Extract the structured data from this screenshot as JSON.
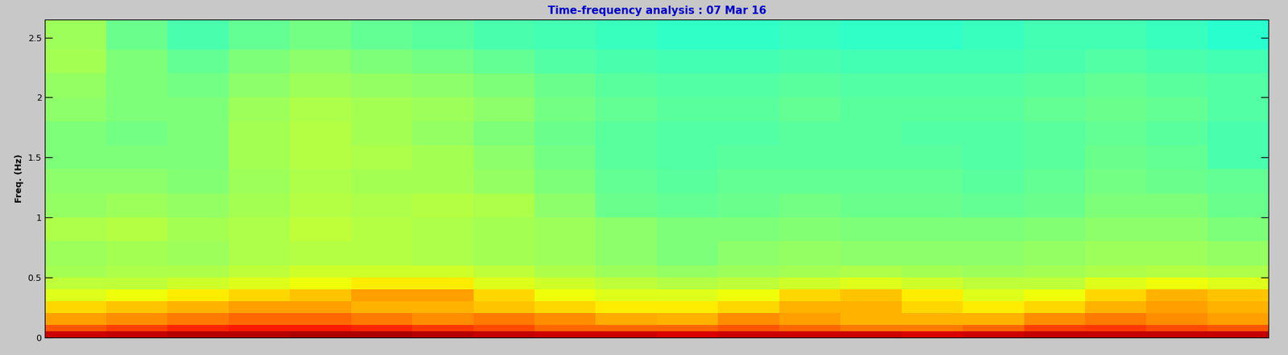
{
  "chart_data": {
    "type": "heatmap",
    "title": "Time-frequency analysis : 07 Mar 16",
    "y_label": "Freq. (Hz)",
    "tick_labels": "y",
    "xlim": [
      0,
      20
    ],
    "ylim": [
      0,
      2.65
    ],
    "yticks": [
      0,
      0.5,
      1,
      1.5,
      2,
      2.5
    ],
    "y_edges": [
      0,
      0.05,
      0.1,
      0.2,
      0.3,
      0.4,
      0.5,
      0.6,
      0.8,
      1.0,
      1.2,
      1.4,
      1.6,
      1.8,
      2.0,
      2.2,
      2.4,
      2.65
    ],
    "clim": [
      0,
      1
    ],
    "cells": [
      [
        0.93,
        0.94,
        0.95,
        0.95,
        0.96,
        0.96,
        0.95,
        0.94,
        0.93,
        0.93,
        0.92,
        0.93,
        0.93,
        0.93,
        0.92,
        0.93,
        0.94,
        0.94,
        0.94,
        0.94
      ],
      [
        0.82,
        0.84,
        0.87,
        0.88,
        0.88,
        0.87,
        0.85,
        0.83,
        0.8,
        0.8,
        0.8,
        0.82,
        0.8,
        0.78,
        0.78,
        0.8,
        0.84,
        0.85,
        0.83,
        0.82
      ],
      [
        0.74,
        0.76,
        0.78,
        0.8,
        0.8,
        0.78,
        0.76,
        0.78,
        0.76,
        0.73,
        0.72,
        0.76,
        0.74,
        0.72,
        0.72,
        0.72,
        0.76,
        0.78,
        0.76,
        0.74
      ],
      [
        0.68,
        0.7,
        0.72,
        0.74,
        0.74,
        0.72,
        0.72,
        0.7,
        0.68,
        0.66,
        0.66,
        0.68,
        0.72,
        0.72,
        0.68,
        0.66,
        0.68,
        0.72,
        0.74,
        0.72
      ],
      [
        0.62,
        0.64,
        0.66,
        0.68,
        0.7,
        0.74,
        0.74,
        0.68,
        0.64,
        0.62,
        0.62,
        0.64,
        0.68,
        0.7,
        0.66,
        0.62,
        0.64,
        0.68,
        0.72,
        0.7
      ],
      [
        0.58,
        0.58,
        0.6,
        0.62,
        0.64,
        0.66,
        0.66,
        0.62,
        0.6,
        0.58,
        0.57,
        0.58,
        0.6,
        0.62,
        0.6,
        0.58,
        0.58,
        0.62,
        0.64,
        0.62
      ],
      [
        0.55,
        0.56,
        0.56,
        0.58,
        0.6,
        0.6,
        0.6,
        0.58,
        0.56,
        0.54,
        0.53,
        0.54,
        0.55,
        0.56,
        0.55,
        0.54,
        0.55,
        0.56,
        0.57,
        0.56
      ],
      [
        0.54,
        0.55,
        0.54,
        0.56,
        0.57,
        0.57,
        0.56,
        0.55,
        0.54,
        0.52,
        0.5,
        0.52,
        0.53,
        0.52,
        0.52,
        0.52,
        0.53,
        0.54,
        0.54,
        0.53
      ],
      [
        0.56,
        0.57,
        0.55,
        0.56,
        0.58,
        0.57,
        0.56,
        0.55,
        0.54,
        0.52,
        0.5,
        0.5,
        0.51,
        0.5,
        0.5,
        0.5,
        0.51,
        0.52,
        0.52,
        0.5
      ],
      [
        0.53,
        0.54,
        0.53,
        0.55,
        0.57,
        0.56,
        0.57,
        0.56,
        0.52,
        0.48,
        0.47,
        0.48,
        0.49,
        0.48,
        0.48,
        0.47,
        0.48,
        0.5,
        0.5,
        0.48
      ],
      [
        0.52,
        0.52,
        0.51,
        0.54,
        0.56,
        0.55,
        0.55,
        0.53,
        0.5,
        0.47,
        0.46,
        0.47,
        0.47,
        0.47,
        0.47,
        0.46,
        0.47,
        0.49,
        0.48,
        0.47
      ],
      [
        0.5,
        0.5,
        0.5,
        0.55,
        0.57,
        0.56,
        0.55,
        0.52,
        0.49,
        0.46,
        0.45,
        0.46,
        0.46,
        0.46,
        0.46,
        0.45,
        0.46,
        0.48,
        0.47,
        0.44
      ],
      [
        0.5,
        0.49,
        0.5,
        0.55,
        0.57,
        0.55,
        0.53,
        0.5,
        0.48,
        0.46,
        0.45,
        0.45,
        0.46,
        0.46,
        0.45,
        0.45,
        0.46,
        0.47,
        0.46,
        0.44
      ],
      [
        0.52,
        0.5,
        0.5,
        0.54,
        0.56,
        0.55,
        0.54,
        0.52,
        0.49,
        0.47,
        0.46,
        0.46,
        0.47,
        0.46,
        0.46,
        0.46,
        0.47,
        0.48,
        0.47,
        0.45
      ],
      [
        0.53,
        0.5,
        0.49,
        0.52,
        0.54,
        0.53,
        0.52,
        0.5,
        0.48,
        0.46,
        0.45,
        0.45,
        0.46,
        0.45,
        0.45,
        0.45,
        0.46,
        0.47,
        0.46,
        0.45
      ],
      [
        0.55,
        0.5,
        0.47,
        0.5,
        0.52,
        0.5,
        0.49,
        0.47,
        0.45,
        0.44,
        0.43,
        0.43,
        0.44,
        0.43,
        0.43,
        0.43,
        0.44,
        0.45,
        0.44,
        0.43
      ],
      [
        0.54,
        0.48,
        0.44,
        0.47,
        0.49,
        0.47,
        0.46,
        0.44,
        0.43,
        0.42,
        0.41,
        0.41,
        0.42,
        0.41,
        0.41,
        0.42,
        0.43,
        0.43,
        0.42,
        0.4
      ]
    ]
  }
}
